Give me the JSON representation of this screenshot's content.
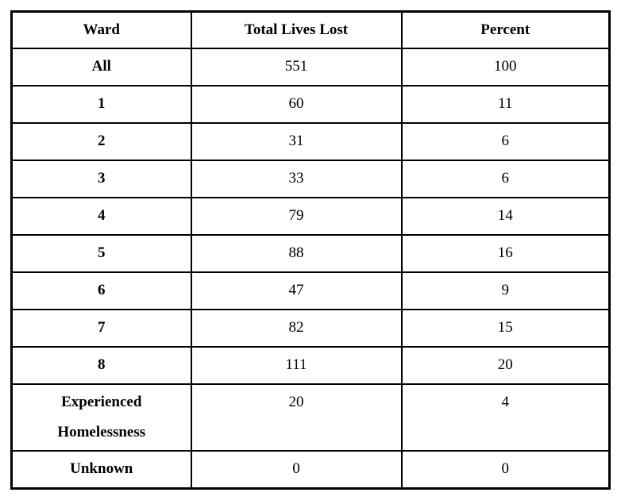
{
  "colors": {
    "border": "#000000",
    "background": "#ffffff",
    "text": "#000000"
  },
  "chart_data": {
    "type": "table",
    "columns": [
      "Ward",
      "Total Lives Lost",
      "Percent"
    ],
    "rows": [
      {
        "ward": "All",
        "total": "551",
        "percent": "100"
      },
      {
        "ward": "1",
        "total": "60",
        "percent": "11"
      },
      {
        "ward": "2",
        "total": "31",
        "percent": "6"
      },
      {
        "ward": "3",
        "total": "33",
        "percent": "6"
      },
      {
        "ward": "4",
        "total": "79",
        "percent": "14"
      },
      {
        "ward": "5",
        "total": "88",
        "percent": "16"
      },
      {
        "ward": "6",
        "total": "47",
        "percent": "9"
      },
      {
        "ward": "7",
        "total": "82",
        "percent": "15"
      },
      {
        "ward": "8",
        "total": "111",
        "percent": "20"
      },
      {
        "ward": "Experienced Homelessness",
        "total": "20",
        "percent": "4"
      },
      {
        "ward": "Unknown",
        "total": "0",
        "percent": "0"
      }
    ]
  }
}
